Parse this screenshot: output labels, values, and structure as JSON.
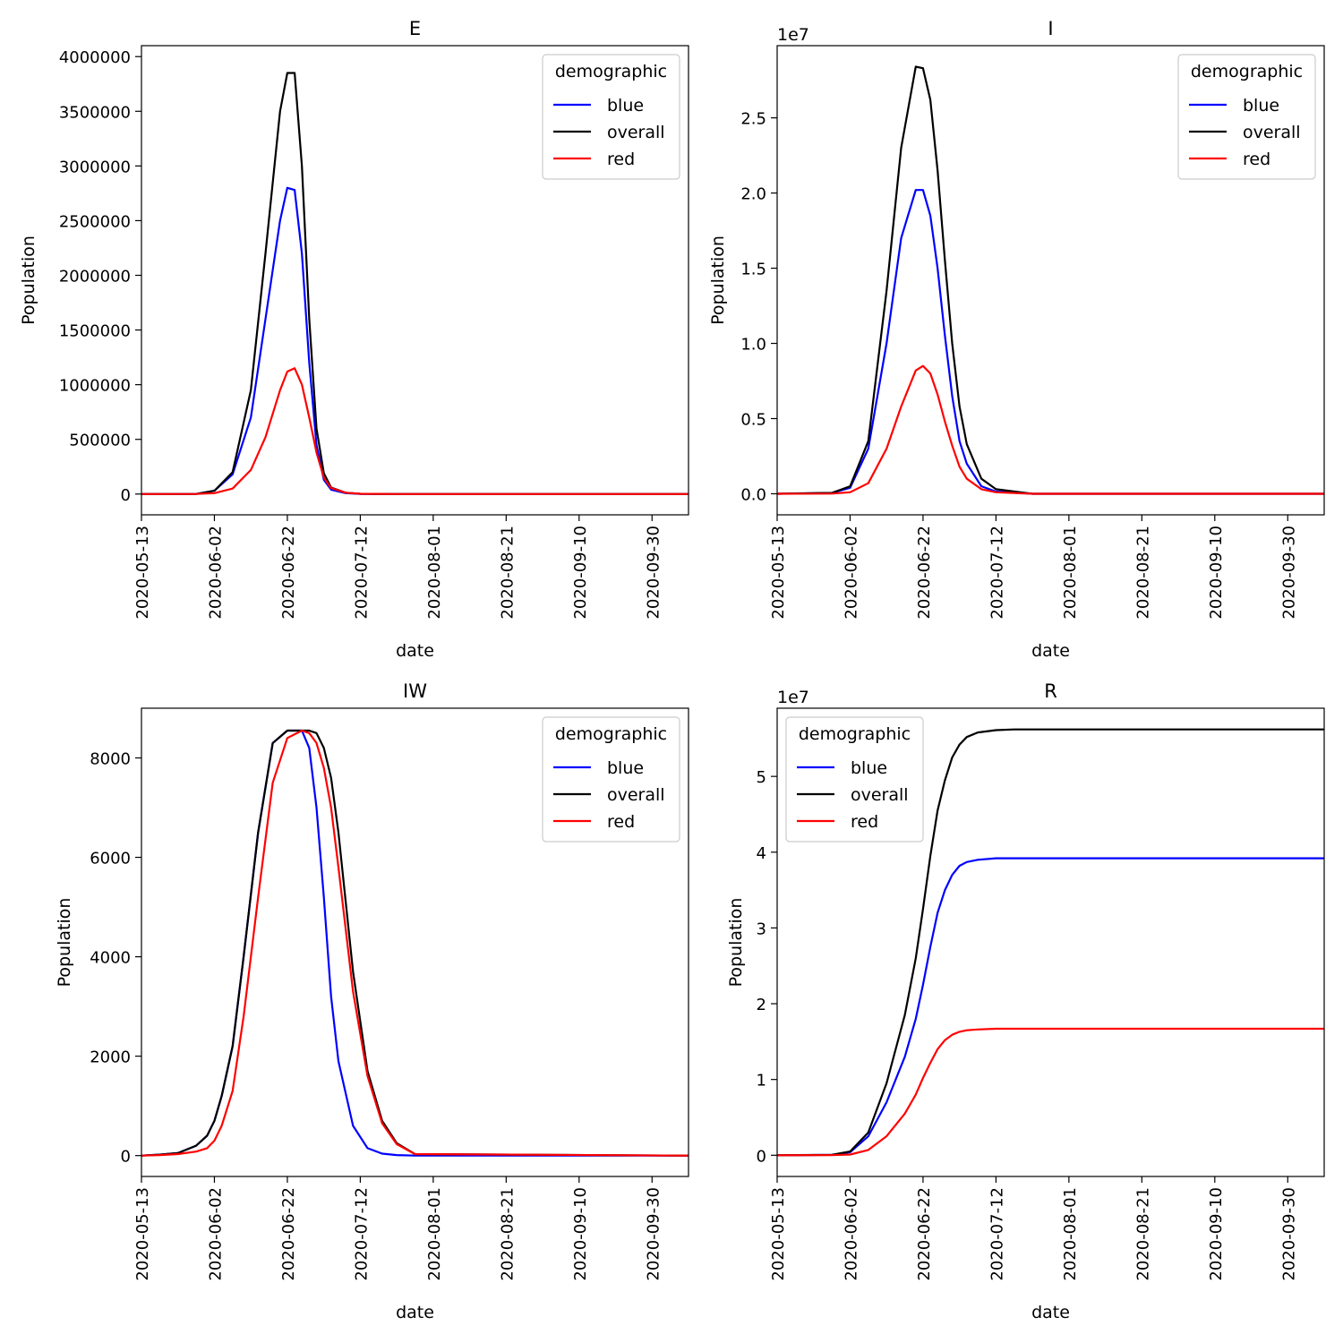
{
  "colors": {
    "blue": "#0000ff",
    "overall": "#000000",
    "red": "#ff0000",
    "axis": "#000000",
    "legend_border": "#cccccc"
  },
  "chart_data": [
    {
      "type": "line",
      "title": "E",
      "xlabel": "date",
      "ylabel": "Population",
      "offset_text": "",
      "x_ticks": [
        "2020-05-13",
        "2020-06-02",
        "2020-06-22",
        "2020-07-12",
        "2020-08-01",
        "2020-08-21",
        "2020-09-10",
        "2020-09-30"
      ],
      "x_range_days": [
        0,
        150
      ],
      "ylim": [
        -190000,
        4100000
      ],
      "y_ticks": [
        0,
        500000,
        1000000,
        1500000,
        2000000,
        2500000,
        3000000,
        3500000,
        4000000
      ],
      "y_tick_labels": [
        "0",
        "500000",
        "1000000",
        "1500000",
        "2000000",
        "2500000",
        "3000000",
        "3500000",
        "4000000"
      ],
      "legend": {
        "title": "demographic",
        "position": "top-right",
        "entries": [
          "blue",
          "overall",
          "red"
        ]
      },
      "series": [
        {
          "name": "blue",
          "x": [
            0,
            15,
            20,
            25,
            30,
            34,
            38,
            40,
            42,
            44,
            46,
            48,
            50,
            52,
            56,
            60,
            70,
            150
          ],
          "values": [
            0,
            1000,
            30000,
            180000,
            700000,
            1600000,
            2500000,
            2800000,
            2780000,
            2200000,
            1200000,
            450000,
            130000,
            40000,
            8000,
            1000,
            0,
            0
          ]
        },
        {
          "name": "overall",
          "x": [
            0,
            15,
            20,
            25,
            30,
            34,
            38,
            40,
            42,
            44,
            46,
            48,
            50,
            52,
            56,
            60,
            70,
            150
          ],
          "values": [
            0,
            1000,
            30000,
            200000,
            950000,
            2200000,
            3500000,
            3850000,
            3850000,
            3000000,
            1600000,
            600000,
            190000,
            60000,
            12000,
            2000,
            0,
            0
          ]
        },
        {
          "name": "red",
          "x": [
            0,
            15,
            20,
            25,
            30,
            34,
            38,
            40,
            42,
            44,
            46,
            48,
            50,
            52,
            56,
            60,
            70,
            150
          ],
          "values": [
            0,
            500,
            8000,
            50000,
            220000,
            520000,
            950000,
            1120000,
            1150000,
            1000000,
            700000,
            380000,
            150000,
            55000,
            12000,
            2000,
            0,
            0
          ]
        }
      ]
    },
    {
      "type": "line",
      "title": "I",
      "xlabel": "date",
      "ylabel": "Population",
      "offset_text": "1e7",
      "x_ticks": [
        "2020-05-13",
        "2020-06-02",
        "2020-06-22",
        "2020-07-12",
        "2020-08-01",
        "2020-08-21",
        "2020-09-10",
        "2020-09-30"
      ],
      "x_range_days": [
        0,
        150
      ],
      "ylim": [
        -0.14,
        2.98
      ],
      "y_ticks": [
        0,
        0.5,
        1.0,
        1.5,
        2.0,
        2.5
      ],
      "y_tick_labels": [
        "0.0",
        "0.5",
        "1.0",
        "1.5",
        "2.0",
        "2.5"
      ],
      "legend": {
        "title": "demographic",
        "position": "top-right",
        "entries": [
          "blue",
          "overall",
          "red"
        ]
      },
      "series": [
        {
          "name": "blue",
          "x": [
            0,
            15,
            20,
            25,
            30,
            34,
            38,
            40,
            42,
            44,
            46,
            48,
            50,
            52,
            56,
            60,
            70,
            150
          ],
          "values": [
            0,
            0.005,
            0.04,
            0.3,
            1.0,
            1.7,
            2.02,
            2.02,
            1.85,
            1.5,
            1.05,
            0.65,
            0.35,
            0.2,
            0.05,
            0.015,
            0,
            0
          ]
        },
        {
          "name": "overall",
          "x": [
            0,
            15,
            20,
            25,
            30,
            34,
            38,
            40,
            42,
            44,
            46,
            48,
            50,
            52,
            56,
            60,
            70,
            150
          ],
          "values": [
            0,
            0.006,
            0.05,
            0.35,
            1.35,
            2.3,
            2.84,
            2.83,
            2.62,
            2.15,
            1.55,
            1.0,
            0.58,
            0.33,
            0.1,
            0.03,
            0,
            0
          ]
        },
        {
          "name": "red",
          "x": [
            0,
            15,
            20,
            25,
            30,
            34,
            38,
            40,
            42,
            44,
            46,
            48,
            50,
            52,
            56,
            60,
            70,
            150
          ],
          "values": [
            0,
            0.001,
            0.01,
            0.07,
            0.3,
            0.58,
            0.82,
            0.85,
            0.8,
            0.66,
            0.48,
            0.32,
            0.18,
            0.1,
            0.03,
            0.01,
            0,
            0
          ]
        }
      ]
    },
    {
      "type": "line",
      "title": "IW",
      "xlabel": "date",
      "ylabel": "Population",
      "offset_text": "",
      "x_ticks": [
        "2020-05-13",
        "2020-06-02",
        "2020-06-22",
        "2020-07-12",
        "2020-08-01",
        "2020-08-21",
        "2020-09-10",
        "2020-09-30"
      ],
      "x_range_days": [
        0,
        150
      ],
      "ylim": [
        -420,
        9000
      ],
      "y_ticks": [
        0,
        2000,
        4000,
        6000,
        8000
      ],
      "y_tick_labels": [
        "0",
        "2000",
        "4000",
        "6000",
        "8000"
      ],
      "legend": {
        "title": "demographic",
        "position": "top-right",
        "entries": [
          "blue",
          "overall",
          "red"
        ]
      },
      "series": [
        {
          "name": "blue",
          "x": [
            0,
            5,
            10,
            15,
            18,
            20,
            22,
            25,
            28,
            32,
            36,
            40,
            44,
            46,
            48,
            50,
            52,
            54,
            58,
            62,
            66,
            70,
            75,
            150
          ],
          "values": [
            0,
            20,
            50,
            200,
            400,
            700,
            1200,
            2200,
            4000,
            6500,
            8300,
            8550,
            8550,
            8200,
            7000,
            5200,
            3200,
            1900,
            600,
            150,
            40,
            10,
            0,
            0
          ]
        },
        {
          "name": "overall",
          "x": [
            0,
            5,
            10,
            15,
            18,
            20,
            22,
            25,
            28,
            32,
            36,
            40,
            44,
            46,
            48,
            50,
            52,
            54,
            58,
            62,
            66,
            70,
            75,
            150
          ],
          "values": [
            0,
            20,
            50,
            200,
            400,
            700,
            1200,
            2200,
            4000,
            6500,
            8300,
            8550,
            8550,
            8550,
            8500,
            8200,
            7600,
            6500,
            3700,
            1700,
            700,
            250,
            30,
            0
          ]
        },
        {
          "name": "red",
          "x": [
            0,
            5,
            10,
            15,
            18,
            20,
            22,
            25,
            28,
            32,
            36,
            40,
            44,
            46,
            48,
            50,
            52,
            54,
            58,
            62,
            66,
            70,
            75,
            150
          ],
          "values": [
            0,
            10,
            30,
            80,
            150,
            300,
            600,
            1300,
            2800,
            5200,
            7500,
            8400,
            8550,
            8500,
            8300,
            7800,
            7000,
            5800,
            3300,
            1600,
            650,
            230,
            30,
            0
          ]
        }
      ]
    },
    {
      "type": "line",
      "title": "R",
      "xlabel": "date",
      "ylabel": "Population",
      "offset_text": "1e7",
      "x_ticks": [
        "2020-05-13",
        "2020-06-02",
        "2020-06-22",
        "2020-07-12",
        "2020-08-01",
        "2020-08-21",
        "2020-09-10",
        "2020-09-30"
      ],
      "x_range_days": [
        0,
        150
      ],
      "ylim": [
        -0.28,
        5.9
      ],
      "y_ticks": [
        0,
        1,
        2,
        3,
        4,
        5
      ],
      "y_tick_labels": [
        "0",
        "1",
        "2",
        "3",
        "4",
        "5"
      ],
      "legend": {
        "title": "demographic",
        "position": "top-left",
        "entries": [
          "blue",
          "overall",
          "red"
        ]
      },
      "series": [
        {
          "name": "blue",
          "x": [
            0,
            15,
            20,
            25,
            30,
            35,
            38,
            40,
            42,
            44,
            46,
            48,
            50,
            52,
            55,
            60,
            65,
            70,
            80,
            150
          ],
          "values": [
            0,
            0.005,
            0.04,
            0.25,
            0.7,
            1.3,
            1.8,
            2.25,
            2.75,
            3.2,
            3.5,
            3.7,
            3.82,
            3.87,
            3.9,
            3.92,
            3.92,
            3.92,
            3.92,
            3.92
          ]
        },
        {
          "name": "overall",
          "x": [
            0,
            15,
            20,
            25,
            30,
            35,
            38,
            40,
            42,
            44,
            46,
            48,
            50,
            52,
            55,
            60,
            65,
            70,
            80,
            150
          ],
          "values": [
            0,
            0.006,
            0.05,
            0.3,
            0.95,
            1.85,
            2.6,
            3.25,
            3.95,
            4.55,
            4.95,
            5.25,
            5.42,
            5.52,
            5.58,
            5.61,
            5.62,
            5.62,
            5.62,
            5.62
          ]
        },
        {
          "name": "red",
          "x": [
            0,
            15,
            20,
            25,
            30,
            35,
            38,
            40,
            42,
            44,
            46,
            48,
            50,
            52,
            55,
            60,
            65,
            70,
            80,
            150
          ],
          "values": [
            0,
            0.001,
            0.01,
            0.07,
            0.25,
            0.55,
            0.8,
            1.02,
            1.22,
            1.4,
            1.52,
            1.59,
            1.63,
            1.65,
            1.66,
            1.67,
            1.67,
            1.67,
            1.67,
            1.67
          ]
        }
      ]
    }
  ]
}
